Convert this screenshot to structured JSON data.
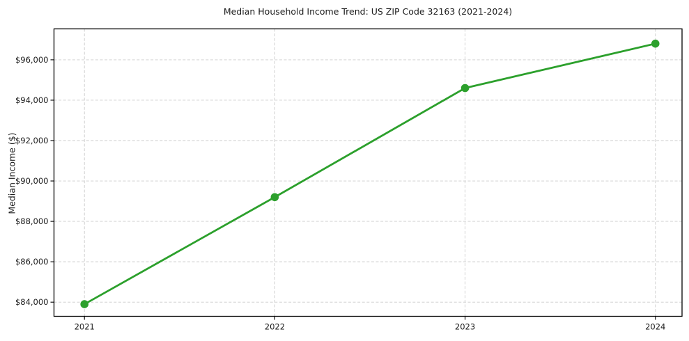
{
  "chart_data": {
    "type": "line",
    "title": "Median Household Income Trend: US ZIP Code 32163 (2021-2024)",
    "xlabel": "",
    "ylabel": "Median Income ($)",
    "x": [
      2021,
      2022,
      2023,
      2024
    ],
    "x_tick_labels": [
      "2021",
      "2022",
      "2023",
      "2024"
    ],
    "values": [
      83900,
      89200,
      94600,
      96800
    ],
    "y_ticks": [
      {
        "value": 84000,
        "label": "$84,000"
      },
      {
        "value": 86000,
        "label": "$86,000"
      },
      {
        "value": 88000,
        "label": "$88,000"
      },
      {
        "value": 90000,
        "label": "$90,000"
      },
      {
        "value": 92000,
        "label": "$92,000"
      },
      {
        "value": 94000,
        "label": "$94,000"
      },
      {
        "value": 96000,
        "label": "$96,000"
      }
    ],
    "xlim": [
      2020.84,
      2024.14
    ],
    "ylim": [
      83300,
      97530
    ],
    "grid": true,
    "grid_style": "dashed",
    "legend_position": "none",
    "line_color": "#2ca02c",
    "marker_color": "#2ca02c",
    "grid_color": "#cccccc",
    "axis_color": "#000000",
    "text_color": "#1a1a1a",
    "background_color": "#ffffff"
  }
}
